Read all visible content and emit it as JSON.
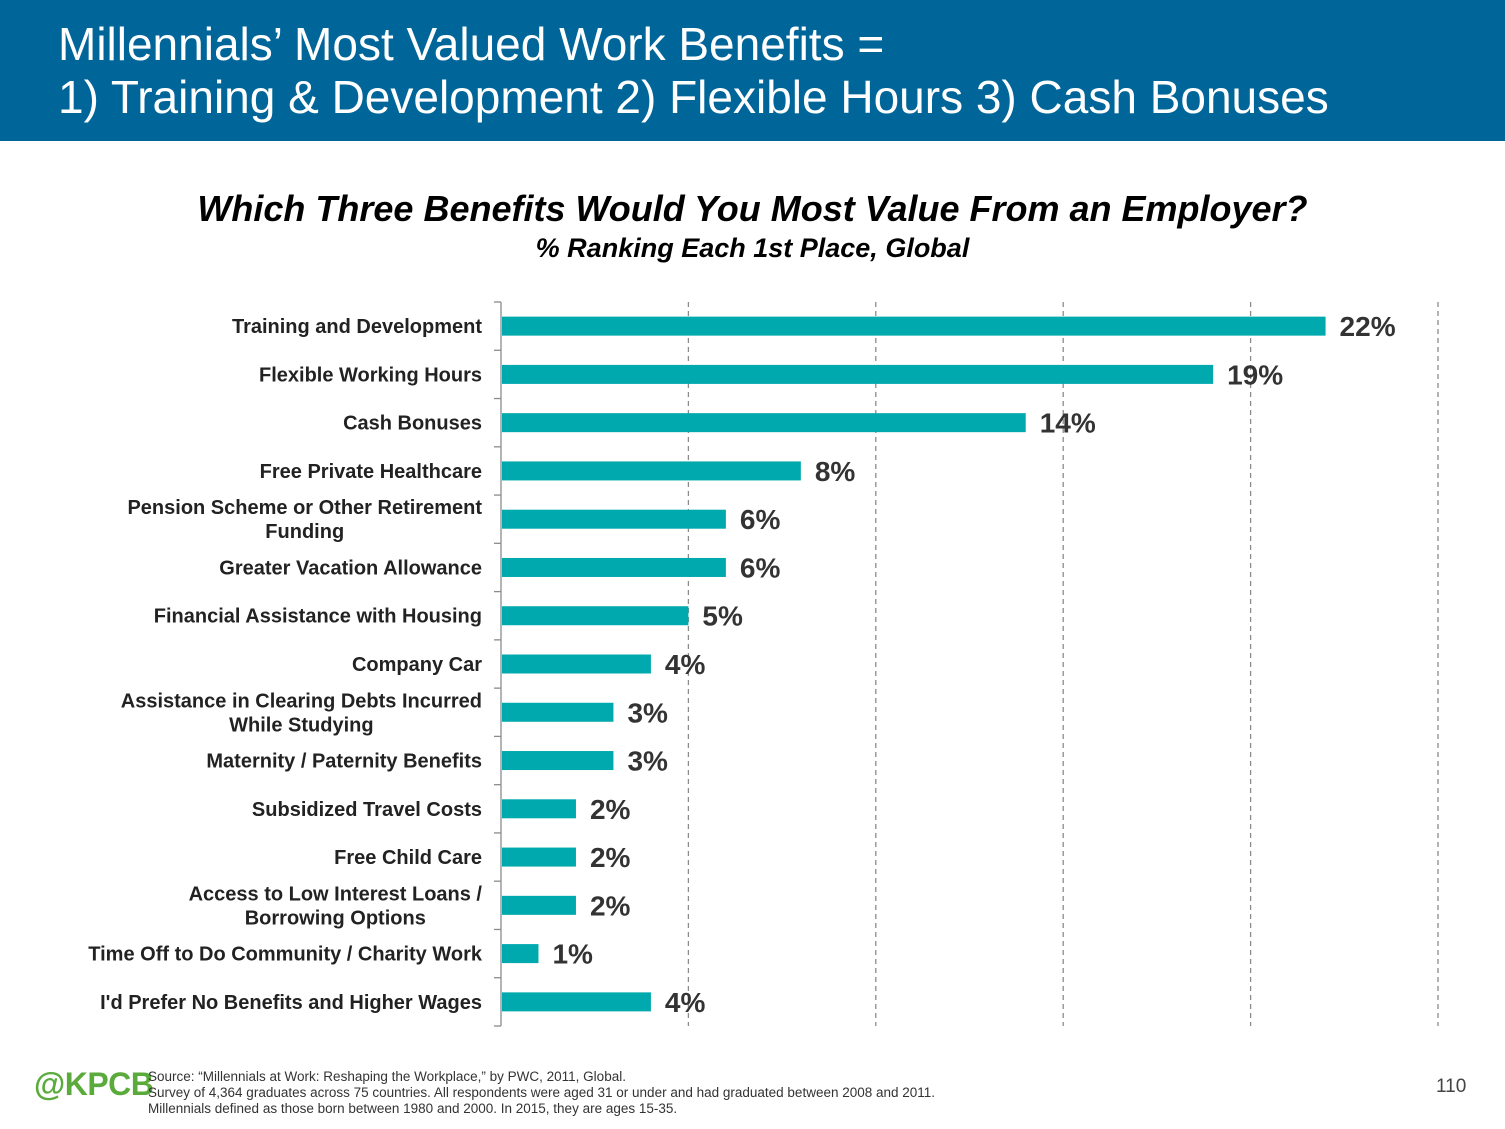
{
  "header": {
    "title_line1": "Millennials’ Most Valued Work Benefits =",
    "title_line2": "1) Training & Development  2) Flexible Hours  3) Cash Bonuses"
  },
  "chart_data": {
    "type": "bar",
    "orientation": "horizontal",
    "title": "Which Three Benefits Would You Most Value From an Employer?",
    "subtitle": "% Ranking Each 1st Place, Global",
    "categories": [
      "Training and Development",
      "Flexible Working Hours",
      "Cash Bonuses",
      "Free Private Healthcare",
      "Pension Scheme or Other Retirement Funding",
      "Greater Vacation Allowance",
      "Financial Assistance with Housing",
      "Company Car",
      "Assistance in Clearing Debts Incurred While Studying",
      "Maternity / Paternity Benefits",
      "Subsidized Travel Costs",
      "Free Child Care",
      "Access to Low Interest Loans / Borrowing Options",
      "Time Off to Do Community / Charity Work",
      "I'd Prefer No Benefits and Higher Wages"
    ],
    "category_lines": [
      [
        "Training and Development"
      ],
      [
        "Flexible Working Hours"
      ],
      [
        "Cash Bonuses"
      ],
      [
        "Free Private Healthcare"
      ],
      [
        "Pension Scheme or Other Retirement",
        "Funding"
      ],
      [
        "Greater Vacation Allowance"
      ],
      [
        "Financial Assistance with Housing"
      ],
      [
        "Company Car"
      ],
      [
        "Assistance in Clearing Debts Incurred",
        "While Studying"
      ],
      [
        "Maternity / Paternity Benefits"
      ],
      [
        "Subsidized Travel Costs"
      ],
      [
        "Free Child Care"
      ],
      [
        "Access to Low Interest Loans /",
        "Borrowing Options"
      ],
      [
        "Time Off to Do Community / Charity Work"
      ],
      [
        "I'd Prefer No Benefits and Higher Wages"
      ]
    ],
    "values": [
      22,
      19,
      14,
      8,
      6,
      6,
      5,
      4,
      3,
      3,
      2,
      2,
      2,
      1,
      4
    ],
    "value_labels": [
      "22%",
      "19%",
      "14%",
      "8%",
      "6%",
      "6%",
      "5%",
      "4%",
      "3%",
      "3%",
      "2%",
      "2%",
      "2%",
      "1%",
      "4%"
    ],
    "xlim": [
      0,
      25
    ],
    "gridlines_x": [
      5,
      10,
      15,
      20,
      25
    ],
    "grid": "vertical dashed",
    "bar_color": "#00a9ad",
    "legend": "none"
  },
  "footer": {
    "logo": "@KPCB",
    "source_line1": "Source: “Millennials at Work: Reshaping the Workplace,” by PWC, 2011, Global.",
    "source_line2": "Survey of 4,364 graduates across 75 countries. All respondents were aged 31 or under and had graduated between 2008 and 2011.",
    "source_line3": "Millennials defined as those born between 1980 and 2000. In 2015, they are ages 15-35.",
    "page_number": "110"
  },
  "colors": {
    "header_bg": "#006699",
    "bar": "#00a9ad",
    "logo": "#5aab3c"
  }
}
